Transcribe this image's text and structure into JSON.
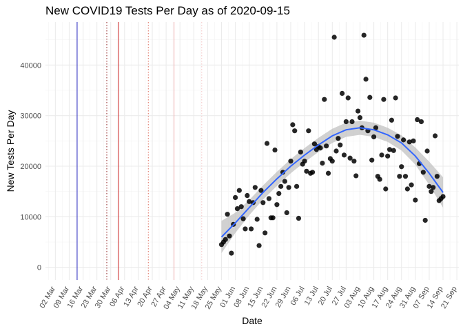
{
  "chart_data": {
    "type": "scatter",
    "title": "New COVID19 Tests Per Day as of 2020-09-15",
    "xlabel": "Date",
    "ylabel": "New Tests Per Day",
    "year": 2020,
    "xlim": [
      "2020-02-26",
      "2020-09-22"
    ],
    "ylim": [
      -2500,
      48500
    ],
    "yticks": [
      0,
      10000,
      20000,
      30000,
      40000
    ],
    "xticks": [
      {
        "label": "02 Mar",
        "date": "2020-03-02"
      },
      {
        "label": "09 Mar",
        "date": "2020-03-09"
      },
      {
        "label": "16 Mar",
        "date": "2020-03-16"
      },
      {
        "label": "23 Mar",
        "date": "2020-03-23"
      },
      {
        "label": "30 Mar",
        "date": "2020-03-30"
      },
      {
        "label": "06 Apr",
        "date": "2020-04-06"
      },
      {
        "label": "13 Apr",
        "date": "2020-04-13"
      },
      {
        "label": "20 Apr",
        "date": "2020-04-20"
      },
      {
        "label": "27 Apr",
        "date": "2020-04-27"
      },
      {
        "label": "04 May",
        "date": "2020-05-04"
      },
      {
        "label": "11 May",
        "date": "2020-05-11"
      },
      {
        "label": "18 May",
        "date": "2020-05-18"
      },
      {
        "label": "25 May",
        "date": "2020-05-25"
      },
      {
        "label": "01 Jun",
        "date": "2020-06-01"
      },
      {
        "label": "08 Jun",
        "date": "2020-06-08"
      },
      {
        "label": "15 Jun",
        "date": "2020-06-15"
      },
      {
        "label": "22 Jun",
        "date": "2020-06-22"
      },
      {
        "label": "29 Jun",
        "date": "2020-06-29"
      },
      {
        "label": "06 Jul",
        "date": "2020-07-06"
      },
      {
        "label": "13 Jul",
        "date": "2020-07-13"
      },
      {
        "label": "20 Jul",
        "date": "2020-07-20"
      },
      {
        "label": "27 Jul",
        "date": "2020-07-27"
      },
      {
        "label": "03 Aug",
        "date": "2020-08-03"
      },
      {
        "label": "10 Aug",
        "date": "2020-08-10"
      },
      {
        "label": "17 Aug",
        "date": "2020-08-17"
      },
      {
        "label": "24 Aug",
        "date": "2020-08-24"
      },
      {
        "label": "31 Aug",
        "date": "2020-08-31"
      },
      {
        "label": "07 Sep",
        "date": "2020-09-07"
      },
      {
        "label": "14 Sep",
        "date": "2020-09-14"
      },
      {
        "label": "21 Sep",
        "date": "2020-09-21"
      }
    ],
    "vlines": [
      {
        "date": "2020-03-13",
        "color": "#1f1fbf",
        "style": "solid"
      },
      {
        "date": "2020-03-28",
        "color": "#8b1a1a",
        "style": "dotted"
      },
      {
        "date": "2020-04-03",
        "color": "#cc2222",
        "style": "solid"
      },
      {
        "date": "2020-04-18",
        "color": "#e07060",
        "style": "dotted"
      },
      {
        "date": "2020-05-01",
        "color": "#f0b0b0",
        "style": "solid"
      },
      {
        "date": "2020-05-15",
        "color": "#f4c4c4",
        "style": "dotted"
      }
    ],
    "points": [
      {
        "date": "2020-05-25",
        "value": 4500
      },
      {
        "date": "2020-05-26",
        "value": 5000
      },
      {
        "date": "2020-05-27",
        "value": 5500
      },
      {
        "date": "2020-05-28",
        "value": 10500
      },
      {
        "date": "2020-05-29",
        "value": 6200
      },
      {
        "date": "2020-05-30",
        "value": 2800
      },
      {
        "date": "2020-05-31",
        "value": 8500
      },
      {
        "date": "2020-06-01",
        "value": 13800
      },
      {
        "date": "2020-06-02",
        "value": 11600
      },
      {
        "date": "2020-06-03",
        "value": 15200
      },
      {
        "date": "2020-06-04",
        "value": 12000
      },
      {
        "date": "2020-06-05",
        "value": 9600
      },
      {
        "date": "2020-06-06",
        "value": 7600
      },
      {
        "date": "2020-06-07",
        "value": 14200
      },
      {
        "date": "2020-06-08",
        "value": 13000
      },
      {
        "date": "2020-06-09",
        "value": 7600
      },
      {
        "date": "2020-06-10",
        "value": 12800
      },
      {
        "date": "2020-06-11",
        "value": 15800
      },
      {
        "date": "2020-06-12",
        "value": 9500
      },
      {
        "date": "2020-06-13",
        "value": 4300
      },
      {
        "date": "2020-06-14",
        "value": 15200
      },
      {
        "date": "2020-06-15",
        "value": 12800
      },
      {
        "date": "2020-06-16",
        "value": 6800
      },
      {
        "date": "2020-06-17",
        "value": 24500
      },
      {
        "date": "2020-06-18",
        "value": 13600
      },
      {
        "date": "2020-06-19",
        "value": 9800
      },
      {
        "date": "2020-06-20",
        "value": 9800
      },
      {
        "date": "2020-06-21",
        "value": 23200
      },
      {
        "date": "2020-06-22",
        "value": 12400
      },
      {
        "date": "2020-06-23",
        "value": 14600
      },
      {
        "date": "2020-06-24",
        "value": 16000
      },
      {
        "date": "2020-06-25",
        "value": 18800
      },
      {
        "date": "2020-06-26",
        "value": 17000
      },
      {
        "date": "2020-06-27",
        "value": 10800
      },
      {
        "date": "2020-06-28",
        "value": 15800
      },
      {
        "date": "2020-06-29",
        "value": 21000
      },
      {
        "date": "2020-06-30",
        "value": 28200
      },
      {
        "date": "2020-07-01",
        "value": 27000
      },
      {
        "date": "2020-07-02",
        "value": 16000
      },
      {
        "date": "2020-07-03",
        "value": 9700
      },
      {
        "date": "2020-07-04",
        "value": 22800
      },
      {
        "date": "2020-07-05",
        "value": 20400
      },
      {
        "date": "2020-07-06",
        "value": 21000
      },
      {
        "date": "2020-07-07",
        "value": 19000
      },
      {
        "date": "2020-07-08",
        "value": 27000
      },
      {
        "date": "2020-07-09",
        "value": 18600
      },
      {
        "date": "2020-07-10",
        "value": 18800
      },
      {
        "date": "2020-07-11",
        "value": 24400
      },
      {
        "date": "2020-07-12",
        "value": 23300
      },
      {
        "date": "2020-07-13",
        "value": 23900
      },
      {
        "date": "2020-07-14",
        "value": 23600
      },
      {
        "date": "2020-07-15",
        "value": 20600
      },
      {
        "date": "2020-07-16",
        "value": 33200
      },
      {
        "date": "2020-07-17",
        "value": 24000
      },
      {
        "date": "2020-07-18",
        "value": 18600
      },
      {
        "date": "2020-07-19",
        "value": 21500
      },
      {
        "date": "2020-07-20",
        "value": 21000
      },
      {
        "date": "2020-07-21",
        "value": 45500
      },
      {
        "date": "2020-07-22",
        "value": 23000
      },
      {
        "date": "2020-07-23",
        "value": 25500
      },
      {
        "date": "2020-07-24",
        "value": 24200
      },
      {
        "date": "2020-07-25",
        "value": 34400
      },
      {
        "date": "2020-07-26",
        "value": 22200
      },
      {
        "date": "2020-07-27",
        "value": 28800
      },
      {
        "date": "2020-07-28",
        "value": 33500
      },
      {
        "date": "2020-07-29",
        "value": 21600
      },
      {
        "date": "2020-07-30",
        "value": 28800
      },
      {
        "date": "2020-07-31",
        "value": 21000
      },
      {
        "date": "2020-08-01",
        "value": 18100
      },
      {
        "date": "2020-08-02",
        "value": 30900
      },
      {
        "date": "2020-08-03",
        "value": 29600
      },
      {
        "date": "2020-08-04",
        "value": 27600
      },
      {
        "date": "2020-08-05",
        "value": 45900
      },
      {
        "date": "2020-08-06",
        "value": 37200
      },
      {
        "date": "2020-08-07",
        "value": 27000
      },
      {
        "date": "2020-08-08",
        "value": 33600
      },
      {
        "date": "2020-08-09",
        "value": 21200
      },
      {
        "date": "2020-08-10",
        "value": 25800
      },
      {
        "date": "2020-08-11",
        "value": 27600
      },
      {
        "date": "2020-08-12",
        "value": 18000
      },
      {
        "date": "2020-08-13",
        "value": 17400
      },
      {
        "date": "2020-08-14",
        "value": 22200
      },
      {
        "date": "2020-08-15",
        "value": 33200
      },
      {
        "date": "2020-08-16",
        "value": 15500
      },
      {
        "date": "2020-08-17",
        "value": 22000
      },
      {
        "date": "2020-08-18",
        "value": 23300
      },
      {
        "date": "2020-08-19",
        "value": 29100
      },
      {
        "date": "2020-08-20",
        "value": 23100
      },
      {
        "date": "2020-08-21",
        "value": 33500
      },
      {
        "date": "2020-08-22",
        "value": 25900
      },
      {
        "date": "2020-08-23",
        "value": 18000
      },
      {
        "date": "2020-08-24",
        "value": 19900
      },
      {
        "date": "2020-08-25",
        "value": 25200
      },
      {
        "date": "2020-08-26",
        "value": 18000
      },
      {
        "date": "2020-08-27",
        "value": 15500
      },
      {
        "date": "2020-08-28",
        "value": 24800
      },
      {
        "date": "2020-08-29",
        "value": 16300
      },
      {
        "date": "2020-08-30",
        "value": 25000
      },
      {
        "date": "2020-08-31",
        "value": 13300
      },
      {
        "date": "2020-09-01",
        "value": 29200
      },
      {
        "date": "2020-09-02",
        "value": 20500
      },
      {
        "date": "2020-09-03",
        "value": 28800
      },
      {
        "date": "2020-09-04",
        "value": 18800
      },
      {
        "date": "2020-09-05",
        "value": 9300
      },
      {
        "date": "2020-09-06",
        "value": 23000
      },
      {
        "date": "2020-09-07",
        "value": 16000
      },
      {
        "date": "2020-09-08",
        "value": 15000
      },
      {
        "date": "2020-09-09",
        "value": 15800
      },
      {
        "date": "2020-09-10",
        "value": 26000
      },
      {
        "date": "2020-09-11",
        "value": 18000
      },
      {
        "date": "2020-09-12",
        "value": 13200
      },
      {
        "date": "2020-09-13",
        "value": 13600
      },
      {
        "date": "2020-09-14",
        "value": 14000
      }
    ],
    "smooth": {
      "color": "#3366ff",
      "band_color": "#bdbdbd",
      "points": [
        {
          "date": "2020-05-25",
          "fit": 6000,
          "lower": 2800,
          "upper": 9200
        },
        {
          "date": "2020-06-01",
          "fit": 8800,
          "lower": 6800,
          "upper": 10800
        },
        {
          "date": "2020-06-08",
          "fit": 11800,
          "lower": 10300,
          "upper": 13300
        },
        {
          "date": "2020-06-15",
          "fit": 14800,
          "lower": 13400,
          "upper": 16200
        },
        {
          "date": "2020-06-22",
          "fit": 17500,
          "lower": 16100,
          "upper": 18900
        },
        {
          "date": "2020-06-29",
          "fit": 20000,
          "lower": 18600,
          "upper": 21400
        },
        {
          "date": "2020-07-06",
          "fit": 22200,
          "lower": 20800,
          "upper": 23600
        },
        {
          "date": "2020-07-13",
          "fit": 24200,
          "lower": 22800,
          "upper": 25600
        },
        {
          "date": "2020-07-20",
          "fit": 26000,
          "lower": 24600,
          "upper": 27400
        },
        {
          "date": "2020-07-27",
          "fit": 27200,
          "lower": 25800,
          "upper": 28600
        },
        {
          "date": "2020-08-03",
          "fit": 27600,
          "lower": 26200,
          "upper": 29000
        },
        {
          "date": "2020-08-10",
          "fit": 27200,
          "lower": 25800,
          "upper": 28600
        },
        {
          "date": "2020-08-17",
          "fit": 26200,
          "lower": 24800,
          "upper": 27600
        },
        {
          "date": "2020-08-24",
          "fit": 24600,
          "lower": 23100,
          "upper": 26100
        },
        {
          "date": "2020-08-31",
          "fit": 22000,
          "lower": 20300,
          "upper": 23700
        },
        {
          "date": "2020-09-07",
          "fit": 18600,
          "lower": 16300,
          "upper": 20900
        },
        {
          "date": "2020-09-14",
          "fit": 14800,
          "lower": 11800,
          "upper": 17800
        }
      ]
    },
    "grid": true,
    "legend": "none",
    "point_color": "#000000"
  }
}
